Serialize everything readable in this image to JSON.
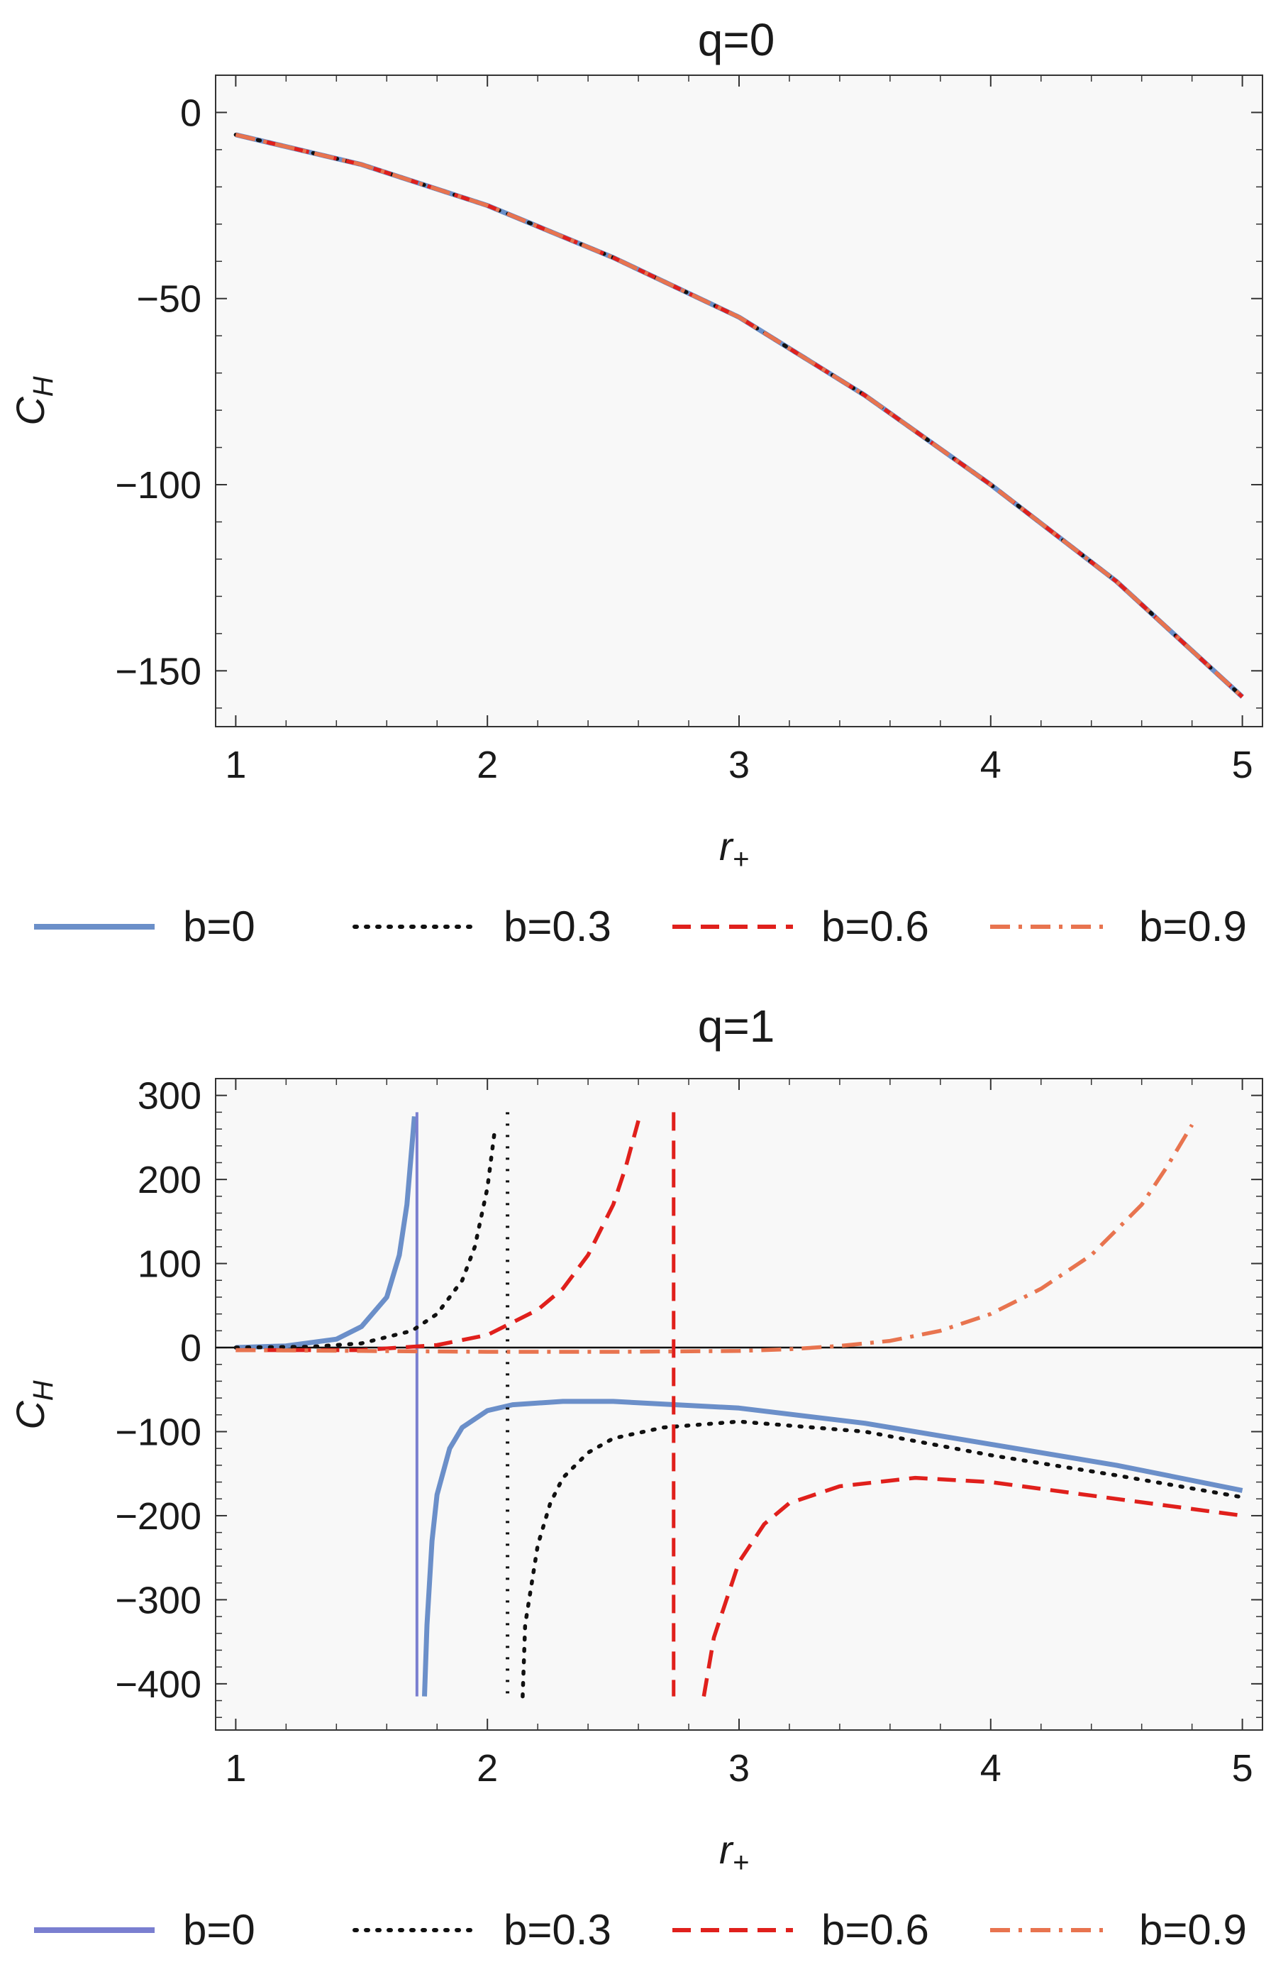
{
  "chart_data": [
    {
      "type": "line",
      "title": "q=0",
      "xlabel": "r",
      "xlabel_sub": "+",
      "ylabel": "C",
      "ylabel_sub": "H",
      "xlim": [
        0.92,
        5.08
      ],
      "ylim": [
        -165,
        10
      ],
      "xticks": [
        1,
        2,
        3,
        4,
        5
      ],
      "yticks": [
        0,
        -50,
        -100,
        -150
      ],
      "ytick_labels": [
        "0",
        "−50",
        "−100",
        "−150"
      ],
      "grid": false,
      "zero_line": false,
      "legend_position": "bottom",
      "series": [
        {
          "name": "b=0",
          "style": "solid",
          "color": "#6b8fc9",
          "x": [
            1,
            1.5,
            2,
            2.5,
            3,
            3.5,
            4,
            4.5,
            5
          ],
          "y": [
            -6,
            -14,
            -25,
            -39,
            -55,
            -76,
            -100,
            -126,
            -157
          ]
        },
        {
          "name": "b=0.3",
          "style": "dotted",
          "color": "#111111",
          "x": [
            1,
            1.5,
            2,
            2.5,
            3,
            3.5,
            4,
            4.5,
            5
          ],
          "y": [
            -6,
            -14,
            -25,
            -39,
            -55,
            -76,
            -100,
            -126,
            -157
          ]
        },
        {
          "name": "b=0.6",
          "style": "dashed",
          "color": "#e0201c",
          "x": [
            1,
            1.5,
            2,
            2.5,
            3,
            3.5,
            4,
            4.5,
            5
          ],
          "y": [
            -6,
            -14,
            -25,
            -39,
            -55,
            -76,
            -100,
            -126,
            -157
          ]
        },
        {
          "name": "b=0.9",
          "style": "dashdot",
          "color": "#e8744f",
          "x": [
            1,
            1.5,
            2,
            2.5,
            3,
            3.5,
            4,
            4.5,
            5
          ],
          "y": [
            -6,
            -14,
            -25,
            -39,
            -55,
            -76,
            -100,
            -126,
            -157
          ]
        }
      ]
    },
    {
      "type": "line",
      "title": "q=1",
      "xlabel": "r",
      "xlabel_sub": "+",
      "ylabel": "C",
      "ylabel_sub": "H",
      "xlim": [
        0.92,
        5.08
      ],
      "ylim": [
        -455,
        320
      ],
      "xticks": [
        1,
        2,
        3,
        4,
        5
      ],
      "yticks": [
        300,
        200,
        100,
        0,
        -100,
        -200,
        -300,
        -400
      ],
      "ytick_labels": [
        "300",
        "200",
        "100",
        "0",
        "−100",
        "−200",
        "−300",
        "−400"
      ],
      "grid": false,
      "zero_line": true,
      "legend_position": "bottom",
      "series": [
        {
          "name": "b=0",
          "style": "solid",
          "color": "#6b8fc9",
          "legend_color": "#7a7fd0",
          "segments": [
            {
              "x": [
                1,
                1.2,
                1.4,
                1.5,
                1.6,
                1.65,
                1.68,
                1.7,
                1.71
              ],
              "y": [
                0,
                2,
                10,
                25,
                60,
                110,
                170,
                240,
                275
              ]
            },
            {
              "x": [
                1.75,
                1.76,
                1.78,
                1.8,
                1.85,
                1.9,
                2,
                2.1,
                2.3,
                2.5,
                3,
                3.5,
                4,
                4.5,
                5
              ],
              "y": [
                -415,
                -330,
                -230,
                -175,
                -120,
                -95,
                -75,
                -68,
                -64,
                -64,
                -72,
                -90,
                -115,
                -140,
                -170
              ]
            }
          ],
          "asymptote_x": 1.72
        },
        {
          "name": "b=0.3",
          "style": "dotted",
          "color": "#111111",
          "segments": [
            {
              "x": [
                1,
                1.3,
                1.5,
                1.7,
                1.8,
                1.9,
                1.95,
                2,
                2.03
              ],
              "y": [
                0,
                1,
                5,
                20,
                40,
                80,
                120,
                190,
                260
              ]
            },
            {
              "x": [
                2.14,
                2.15,
                2.2,
                2.25,
                2.3,
                2.4,
                2.5,
                2.7,
                3,
                3.5,
                4,
                4.5,
                5
              ],
              "y": [
                -415,
                -330,
                -235,
                -185,
                -155,
                -125,
                -108,
                -95,
                -88,
                -100,
                -128,
                -152,
                -178
              ]
            }
          ],
          "asymptote_x": 2.08
        },
        {
          "name": "b=0.6",
          "style": "dashed",
          "color": "#e0201c",
          "segments": [
            {
              "x": [
                1,
                1.5,
                1.8,
                2,
                2.2,
                2.3,
                2.4,
                2.5,
                2.55,
                2.6
              ],
              "y": [
                -3,
                -3,
                3,
                15,
                45,
                70,
                110,
                170,
                215,
                270
              ]
            },
            {
              "x": [
                2.86,
                2.9,
                3,
                3.1,
                3.2,
                3.4,
                3.7,
                4,
                4.5,
                5
              ],
              "y": [
                -415,
                -345,
                -255,
                -210,
                -185,
                -165,
                -155,
                -160,
                -180,
                -200
              ]
            }
          ],
          "asymptote_x": 2.74
        },
        {
          "name": "b=0.9",
          "style": "dashdot",
          "color": "#e8744f",
          "segments": [
            {
              "x": [
                1,
                1.5,
                2,
                2.5,
                3,
                3.2,
                3.4,
                3.6,
                3.8,
                4,
                4.2,
                4.4,
                4.6,
                4.7,
                4.8
              ],
              "y": [
                -3,
                -4,
                -5,
                -5,
                -4,
                -2,
                2,
                8,
                20,
                40,
                70,
                110,
                170,
                215,
                265
              ]
            }
          ]
        }
      ]
    }
  ]
}
